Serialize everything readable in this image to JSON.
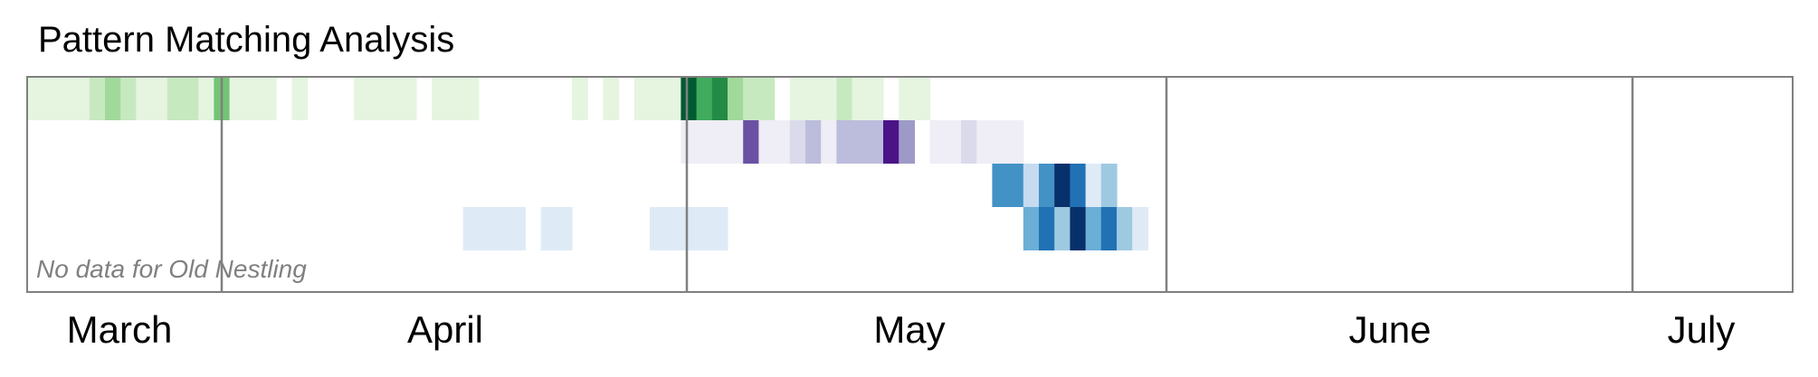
{
  "chart_data": {
    "type": "heatmap",
    "title": "Pattern Matching Analysis",
    "note": "No data for Old Nestling",
    "x_axis": {
      "unit": "week",
      "start": "2020-02-26",
      "end": "2020-07-10",
      "months": [
        {
          "label": "March",
          "start": "2020-02-26",
          "end": "2020-03-09"
        },
        {
          "label": "April",
          "start": "2020-03-09",
          "end": "2020-04-09"
        },
        {
          "label": "May",
          "start": "2020-04-09",
          "end": "2020-05-10"
        },
        {
          "label": "June",
          "start": "2020-05-10",
          "end": "2020-06-09"
        },
        {
          "label": "July",
          "start": "2020-06-09",
          "end": "2020-07-10"
        }
      ]
    },
    "rows": [
      {
        "palette": "greens",
        "intensities": [
          0.1,
          0.2,
          0.2,
          0.05,
          0.35,
          0.4,
          0.3,
          0.15,
          0.15,
          0.3,
          0.3,
          0.1,
          0.5,
          0.05,
          0.1,
          0.15,
          0,
          0.05,
          0,
          0,
          0,
          0.1,
          0.05,
          0.05,
          0.05,
          0,
          0.05,
          0.05,
          0.05,
          0,
          0,
          0,
          0,
          0,
          0,
          0.1,
          0,
          0.05,
          0,
          0.05,
          0.05,
          0.05,
          1,
          0.75,
          0.85,
          0.45,
          0.35,
          0.3,
          0,
          0.05,
          0.05,
          0.05,
          0.25,
          0.1,
          0.1,
          0,
          0.15,
          0.15,
          0,
          0,
          0,
          0,
          0,
          0,
          0,
          0,
          0,
          0,
          0,
          0,
          0,
          0,
          0,
          0,
          0,
          0,
          0,
          0,
          0,
          0,
          0,
          0,
          0,
          0,
          0,
          0,
          0,
          0,
          0,
          0,
          0,
          0,
          0,
          0,
          0,
          0,
          0,
          0,
          0,
          0,
          0,
          0,
          0,
          0,
          0,
          0,
          0,
          0,
          0,
          0,
          0,
          0,
          0,
          0,
          0
        ]
      },
      {
        "palette": "purples",
        "intensities": [
          0,
          0,
          0,
          0,
          0,
          0,
          0,
          0,
          0,
          0,
          0,
          0,
          0,
          0,
          0,
          0,
          0,
          0,
          0,
          0,
          0,
          0,
          0,
          0,
          0,
          0,
          0,
          0,
          0,
          0,
          0,
          0,
          0,
          0,
          0,
          0,
          0,
          0,
          0,
          0,
          0,
          0,
          0.05,
          0.05,
          0.15,
          0.05,
          0.9,
          0.15,
          0.15,
          0.35,
          0.45,
          0.1,
          0.45,
          0.45,
          0.45,
          1,
          0.5,
          0,
          0.2,
          0.2,
          0.25,
          0.1,
          0.1,
          0.05,
          0,
          0,
          0,
          0,
          0,
          0,
          0,
          0,
          0,
          0,
          0,
          0,
          0,
          0,
          0,
          0,
          0,
          0,
          0,
          0,
          0,
          0,
          0,
          0,
          0,
          0,
          0,
          0,
          0,
          0,
          0,
          0,
          0,
          0,
          0,
          0,
          0,
          0,
          0,
          0,
          0,
          0,
          0,
          0,
          0,
          0,
          0,
          0,
          0,
          0,
          0,
          0
        ]
      },
      {
        "palette": "blues",
        "intensities": [
          0,
          0,
          0,
          0,
          0,
          0,
          0,
          0,
          0,
          0,
          0,
          0,
          0,
          0,
          0,
          0,
          0,
          0,
          0,
          0,
          0,
          0,
          0,
          0,
          0,
          0,
          0,
          0,
          0,
          0,
          0,
          0,
          0,
          0,
          0,
          0,
          0,
          0,
          0,
          0,
          0,
          0,
          0,
          0,
          0,
          0,
          0,
          0,
          0,
          0,
          0,
          0,
          0,
          0,
          0,
          0,
          0,
          0,
          0,
          0,
          0,
          0,
          0.65,
          0.65,
          0.35,
          0.65,
          1,
          0.85,
          0.15,
          0.4,
          0,
          0,
          0,
          0,
          0,
          0,
          0,
          0,
          0,
          0,
          0,
          0,
          0,
          0,
          0,
          0,
          0,
          0,
          0,
          0,
          0,
          0,
          0,
          0,
          0,
          0,
          0,
          0,
          0,
          0,
          0,
          0,
          0,
          0,
          0,
          0,
          0,
          0,
          0,
          0,
          0,
          0,
          0,
          0
        ]
      },
      {
        "palette": "blues",
        "intensities": [
          0,
          0,
          0,
          0,
          0,
          0,
          0,
          0,
          0,
          0,
          0,
          0,
          0,
          0,
          0,
          0,
          0,
          0,
          0,
          0,
          0,
          0,
          0,
          0,
          0,
          0,
          0,
          0,
          0.1,
          0.1,
          0.1,
          0.15,
          0,
          0.1,
          0.1,
          0,
          0,
          0,
          0,
          0,
          0.1,
          0.1,
          0.1,
          0.1,
          0.1,
          0,
          0,
          0,
          0,
          0,
          0,
          0,
          0,
          0,
          0,
          0,
          0,
          0,
          0,
          0,
          0,
          0,
          0,
          0,
          0.5,
          0.8,
          0.45,
          1,
          0.6,
          0.8,
          0.45,
          0.15,
          0,
          0,
          0,
          0,
          0,
          0,
          0,
          0,
          0,
          0,
          0,
          0,
          0,
          0,
          0,
          0,
          0,
          0,
          0,
          0,
          0,
          0,
          0,
          0,
          0,
          0,
          0,
          0,
          0,
          0,
          0,
          0,
          0,
          0,
          0,
          0,
          0,
          0,
          0,
          0,
          0,
          0,
          0,
          0,
          0,
          0,
          0,
          0
        ]
      }
    ],
    "colors": {
      "greens": [
        "#ffffff",
        "#e5f5e0",
        "#c7e9c0",
        "#a1d99b",
        "#74c476",
        "#41ab5d",
        "#238b45",
        "#005a32"
      ],
      "purples": [
        "#ffffff",
        "#efedf5",
        "#dadaeb",
        "#bcbddc",
        "#9e9ac8",
        "#807dba",
        "#6a51a3",
        "#4a1486"
      ],
      "blues": [
        "#ffffff",
        "#deebf7",
        "#c6dbef",
        "#9ecae1",
        "#6baed6",
        "#4292c6",
        "#2171b5",
        "#08306b"
      ],
      "frame": "#808080",
      "month_divider": "#808080"
    },
    "legend": "none",
    "grid": false
  }
}
